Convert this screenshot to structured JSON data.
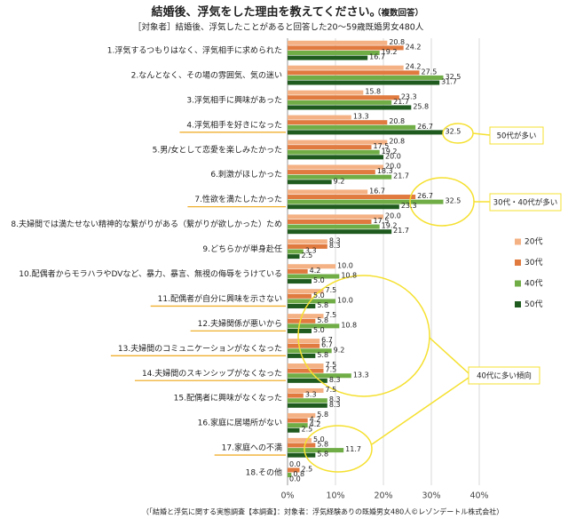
{
  "chart_data": {
    "type": "bar",
    "orientation": "horizontal",
    "title": "結婚後、浮気をした理由を教えてください。",
    "title_note": "（複数回答）",
    "subtitle": "［対象者］結婚後、浮気したことがあると回答した20～59歳既婚男女480人",
    "source": "（「結婚と浮気に関する実態調査【本調査】：対象者：浮気経験ありの既婚男女480人©レゾンデートル株式会社）",
    "categories": [
      "1.浮気するつもりはなく、浮気相手に求められた",
      "2.なんとなく、その場の雰囲気、気の迷い",
      "3.浮気相手に興味があった",
      "4.浮気相手を好きになった",
      "5.男/女として恋愛を楽しみたかった",
      "6.刺激がほしかった",
      "7.性欲を満たしたかった",
      "8.夫婦間では満たせない精神的な繋がりがある（繋がりが欲しかった）ため",
      "9.どちらかが単身赴任",
      "10.配偶者からモラハラやDVなど、暴力、暴言、無視の侮辱をうけている",
      "11.配偶者が自分に興味を示さない",
      "12.夫婦関係が悪いから",
      "13.夫婦間のコミュニケーションがなくなった",
      "14.夫婦間のスキンシップがなくなった",
      "15.配偶者に興味がなくなった",
      "16.家庭に居場所がない",
      "17.家庭への不満",
      "18.その他"
    ],
    "series": [
      {
        "name": "20代",
        "color": "#f4b183",
        "values": [
          20.8,
          24.2,
          15.8,
          13.3,
          20.8,
          20.0,
          16.7,
          20.0,
          8.3,
          10.0,
          7.5,
          7.5,
          6.7,
          7.5,
          7.5,
          5.8,
          5.0,
          0.0
        ],
        "value_labels": [
          "20.8",
          "24.2",
          "15.8",
          "13.3",
          "20.8",
          "20.0",
          "16.7",
          "20.0",
          "8.3",
          "10.0",
          "7.5",
          "7.5",
          "6.7",
          "7.5",
          "7.5",
          "5.8",
          "5.0",
          "0.0"
        ]
      },
      {
        "name": "30代",
        "color": "#e07a3f",
        "values": [
          24.2,
          27.5,
          23.3,
          20.8,
          17.5,
          18.3,
          26.7,
          17.5,
          8.3,
          4.2,
          5.0,
          5.8,
          6.7,
          7.5,
          3.3,
          4.2,
          5.8,
          2.5
        ],
        "value_labels": [
          "24.2",
          "27.5",
          "23.3",
          "20.8",
          "17.5",
          "18.3",
          "26.7",
          "17.5",
          "8.3",
          "4.2",
          "5.0",
          "5.8",
          "6.7",
          "7.5",
          "3.3",
          "4.2",
          "5.8",
          "2.5"
        ]
      },
      {
        "name": "40代",
        "color": "#70ad47",
        "values": [
          19.2,
          32.5,
          21.7,
          26.7,
          19.2,
          21.7,
          32.5,
          19.2,
          3.3,
          10.8,
          10.0,
          10.8,
          9.2,
          13.3,
          8.3,
          4.2,
          11.7,
          0.8
        ],
        "value_labels": [
          "19.2",
          "32.5",
          "21.7",
          "26.7",
          "19.2",
          "21.7",
          "32.5",
          "19.2",
          "3.3",
          "10.8",
          "10.0",
          "10.8",
          "9.2",
          "13.3",
          "8.3",
          "4.2",
          "11.7",
          "0.8"
        ]
      },
      {
        "name": "50代",
        "color": "#1f5b1f",
        "values": [
          16.7,
          31.7,
          25.8,
          32.5,
          20.0,
          9.2,
          23.3,
          21.7,
          2.5,
          5.0,
          5.8,
          5.0,
          5.8,
          8.3,
          8.3,
          2.5,
          5.8,
          0.0
        ],
        "value_labels": [
          "16.7",
          "31.7",
          "25.8",
          "32.5",
          "20.0",
          "9.2",
          "23.3",
          "21.7",
          "2.5",
          "5.0",
          "5.8",
          "5.0",
          "5.8",
          "8.3",
          "8.3",
          "2.5",
          "5.8",
          "0.0"
        ]
      }
    ],
    "xlim": [
      0,
      40
    ],
    "xticks": [
      {
        "value": 0,
        "label": "0%"
      },
      {
        "value": 10,
        "label": "10%"
      },
      {
        "value": 20,
        "label": "20%"
      },
      {
        "value": 30,
        "label": "30%"
      },
      {
        "value": 40,
        "label": "40%"
      }
    ],
    "grid": true,
    "legend": "right",
    "highlight_color": "#e03030",
    "highlights": [
      [
        3,
        3
      ],
      [
        1,
        6
      ],
      [
        2,
        6
      ],
      [
        2,
        10
      ],
      [
        2,
        11
      ],
      [
        2,
        12
      ],
      [
        2,
        13
      ],
      [
        2,
        16
      ]
    ],
    "underline_color": "#f0b030",
    "underlined": [
      3,
      6,
      10,
      11,
      12,
      13,
      16
    ],
    "annotations": [
      "50代が多い",
      "30代・40代が多い",
      "40代に多い傾向"
    ]
  }
}
